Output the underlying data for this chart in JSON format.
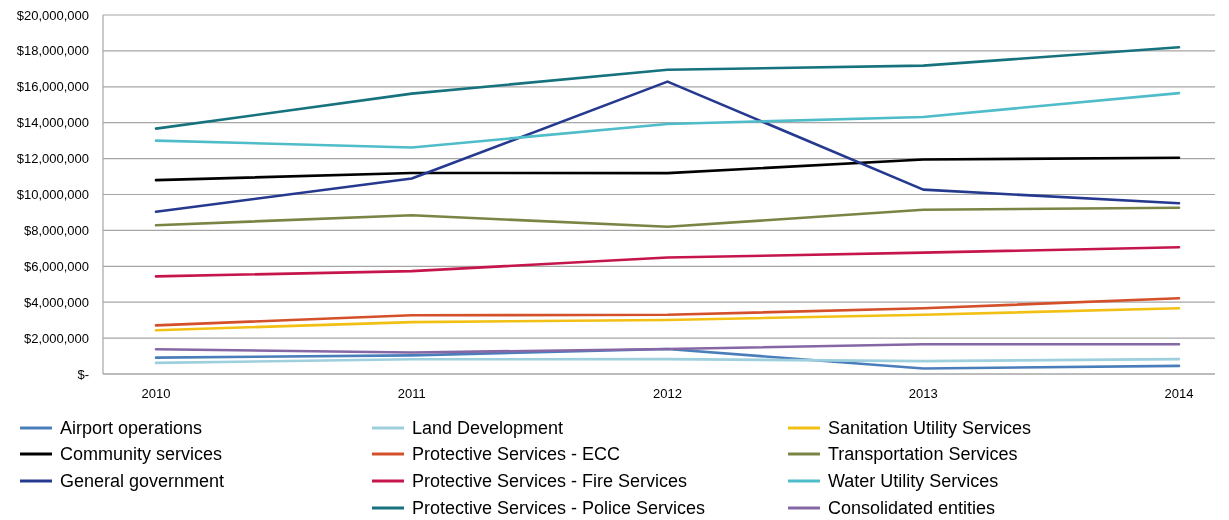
{
  "chart_data": {
    "type": "line",
    "categories": [
      "2010",
      "2011",
      "2012",
      "2013",
      "2014"
    ],
    "ylim": [
      0,
      20000000
    ],
    "yticks": [
      {
        "value": 0,
        "label": "$-"
      },
      {
        "value": 2000000,
        "label": "$2,000,000"
      },
      {
        "value": 4000000,
        "label": "$4,000,000"
      },
      {
        "value": 6000000,
        "label": "$6,000,000"
      },
      {
        "value": 8000000,
        "label": "$8,000,000"
      },
      {
        "value": 10000000,
        "label": "$10,000,000"
      },
      {
        "value": 12000000,
        "label": "$12,000,000"
      },
      {
        "value": 14000000,
        "label": "$14,000,000"
      },
      {
        "value": 16000000,
        "label": "$16,000,000"
      },
      {
        "value": 18000000,
        "label": "$18,000,000"
      },
      {
        "value": 20000000,
        "label": "$20,000,000"
      }
    ],
    "grid": "y",
    "legend": "bottom",
    "series": [
      {
        "name": "Airport operations",
        "color": "#4a7ebb",
        "values": [
          910000,
          1040000,
          1390000,
          310000,
          450000
        ]
      },
      {
        "name": "Community services",
        "color": "#000000",
        "values": [
          10800000,
          11200000,
          11190000,
          11950000,
          12050000
        ]
      },
      {
        "name": "General government",
        "color": "#25398f",
        "values": [
          9040000,
          10890000,
          16290000,
          10270000,
          9510000
        ]
      },
      {
        "name": "Land Development",
        "color": "#9dcfdd",
        "values": [
          620000,
          820000,
          830000,
          720000,
          830000
        ]
      },
      {
        "name": "Protective Services - ECC",
        "color": "#d4502a",
        "values": [
          2710000,
          3270000,
          3300000,
          3660000,
          4220000
        ]
      },
      {
        "name": "Protective Services - Fire Services",
        "color": "#c6154c",
        "values": [
          5440000,
          5730000,
          6490000,
          6760000,
          7060000
        ]
      },
      {
        "name": "Protective Services - Police Services",
        "color": "#16737e",
        "values": [
          13670000,
          15620000,
          16950000,
          17180000,
          18200000
        ]
      },
      {
        "name": "Sanitation Utility Services",
        "color": "#f2c014",
        "values": [
          2440000,
          2890000,
          3010000,
          3300000,
          3660000
        ]
      },
      {
        "name": "Transportation Services",
        "color": "#7a8445",
        "values": [
          8290000,
          8840000,
          8200000,
          9150000,
          9260000
        ]
      },
      {
        "name": "Water Utility Services",
        "color": "#4fbcc9",
        "values": [
          13000000,
          12620000,
          13930000,
          14320000,
          15650000
        ]
      },
      {
        "name": "Consolidated entities",
        "color": "#8567a6",
        "values": [
          1380000,
          1200000,
          1390000,
          1660000,
          1660000
        ]
      }
    ]
  }
}
